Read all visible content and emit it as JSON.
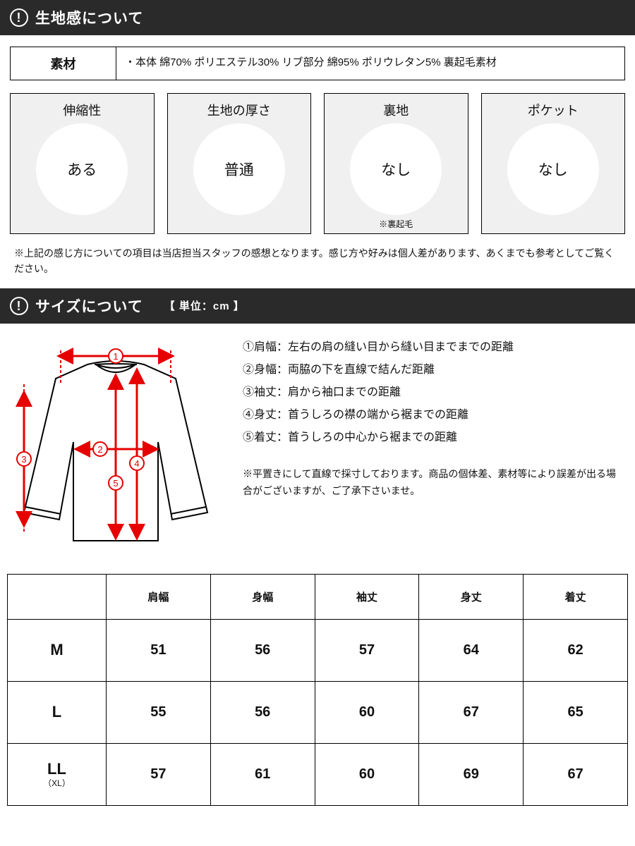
{
  "section1": {
    "title": "生地感について"
  },
  "material": {
    "label": "素材",
    "value": "・本体 綿70% ポリエステル30% リブ部分 綿95% ポリウレタン5% 裏起毛素材"
  },
  "attrs": [
    {
      "label": "伸縮性",
      "value": "ある",
      "note": ""
    },
    {
      "label": "生地の厚さ",
      "value": "普通",
      "note": ""
    },
    {
      "label": "裏地",
      "value": "なし",
      "note": "※裏起毛"
    },
    {
      "label": "ポケット",
      "value": "なし",
      "note": ""
    }
  ],
  "disclaimer": "※上記の感じ方についての項目は当店担当スタッフの感想となります。感じ方や好みは個人差があります、あくまでも参考としてご覧ください。",
  "section2": {
    "title": "サイズについて",
    "unit": "【 単位：cm 】"
  },
  "defs": [
    "①肩幅：左右の肩の縫い目から縫い目までまでの距離",
    "②身幅：両脇の下を直線で結んだ距離",
    "③袖丈：肩から袖口までの距離",
    "④身丈：首うしろの襟の端から裾までの距離",
    "⑤着丈：首うしろの中心から裾までの距離"
  ],
  "defs_note": "※平置きにして直線で採寸しております。商品の個体差、素材等により誤差が出る場合がございますが、ご了承下さいませ。",
  "table": {
    "columns": [
      "",
      "肩幅",
      "身幅",
      "袖丈",
      "身丈",
      "着丈"
    ],
    "rows": [
      {
        "label": "M",
        "sub": "",
        "values": [
          "51",
          "56",
          "57",
          "64",
          "62"
        ]
      },
      {
        "label": "L",
        "sub": "",
        "values": [
          "55",
          "56",
          "60",
          "67",
          "65"
        ]
      },
      {
        "label": "LL",
        "sub": "（XL）",
        "values": [
          "57",
          "61",
          "60",
          "69",
          "67"
        ]
      }
    ]
  },
  "colors": {
    "header_bg": "#2a2a2a",
    "card_bg": "#f0f0f0",
    "arrow": "#e60000"
  }
}
